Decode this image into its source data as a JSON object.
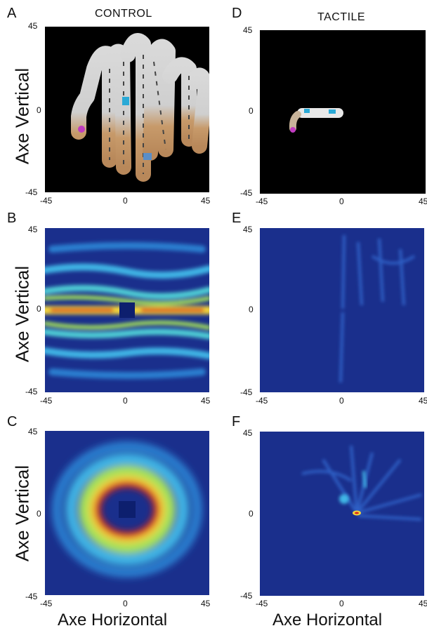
{
  "columns": {
    "left_title": "CONTROL",
    "right_title": "TACTILE"
  },
  "panels": [
    {
      "id": "A",
      "letter": "A",
      "ticks": {
        "y_top": "45",
        "y_mid": "0",
        "y_bot": "-45",
        "x_left": "-45",
        "x_mid": "0",
        "x_right": "45"
      }
    },
    {
      "id": "B",
      "letter": "B",
      "ticks": {
        "y_top": "45",
        "y_mid": "0",
        "y_bot": "-45",
        "x_left": "-45",
        "x_mid": "0",
        "x_right": "45"
      }
    },
    {
      "id": "C",
      "letter": "C",
      "ticks": {
        "y_top": "45",
        "y_mid": "0",
        "y_bot": "-45",
        "x_left": "-45",
        "x_mid": "0",
        "x_right": "45"
      }
    },
    {
      "id": "D",
      "letter": "D",
      "ticks": {
        "y_top": "45",
        "y_mid": "0",
        "y_bot": "-45",
        "x_left": "-45",
        "x_mid": "0",
        "x_right": "45"
      }
    },
    {
      "id": "E",
      "letter": "E",
      "ticks": {
        "y_top": "45",
        "y_mid": "0",
        "y_bot": "-45",
        "x_left": "-45",
        "x_mid": "0",
        "x_right": "45"
      }
    },
    {
      "id": "F",
      "letter": "F",
      "ticks": {
        "y_top": "45",
        "y_mid": "0",
        "y_bot": "-45",
        "x_left": "-45",
        "x_mid": "0",
        "x_right": "45"
      }
    }
  ],
  "axis_labels": {
    "vertical": "Axe Vertical",
    "horizontal": "Axe Horizontal"
  },
  "colors": {
    "heatmap_bg": "#1a2f8c",
    "path_bg": "#000000"
  }
}
